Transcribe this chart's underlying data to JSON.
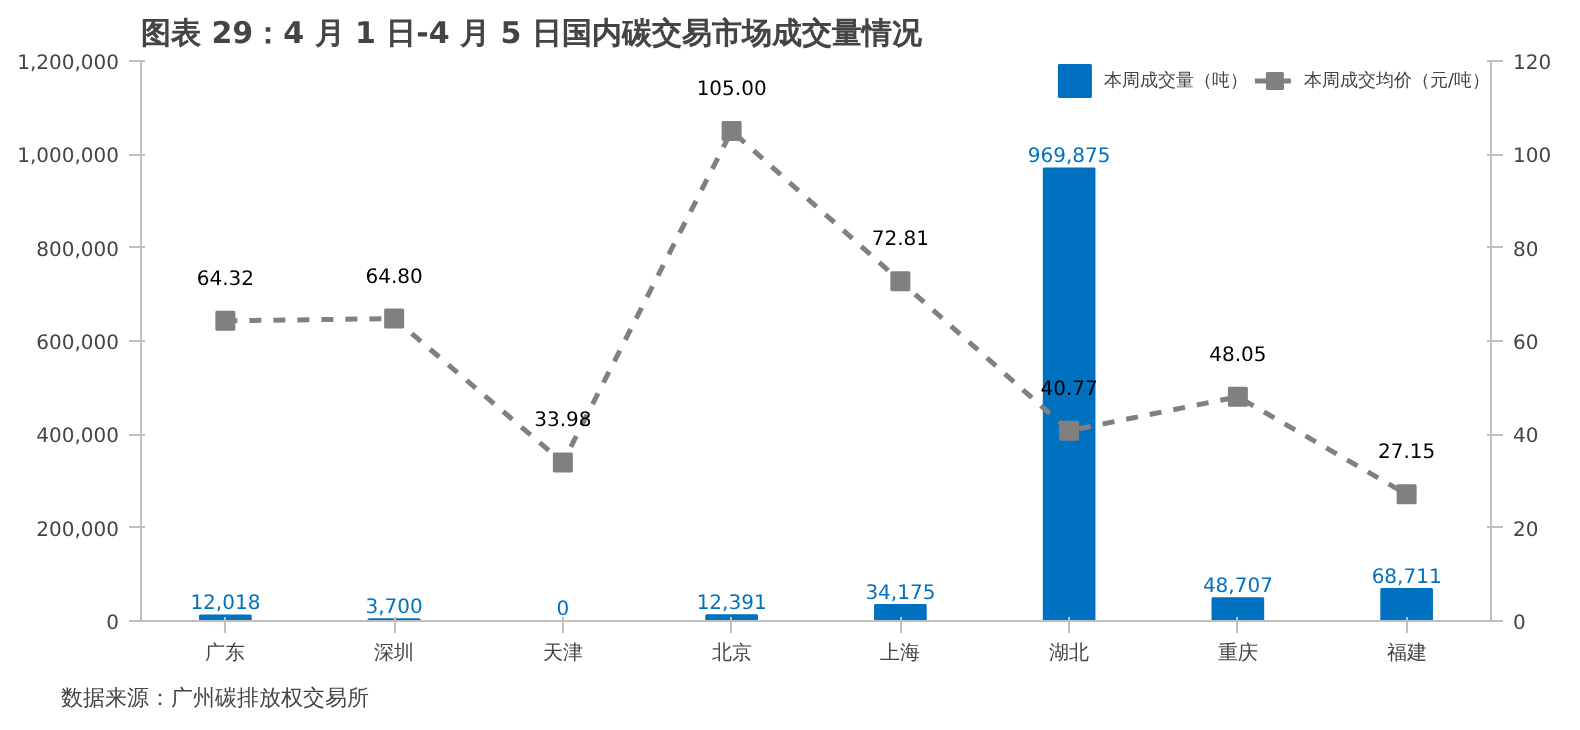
{
  "chart_data": {
    "type": "bar",
    "title": "图表 29：4 月 1 日-4 月 5 日国内碳交易市场成交量情况",
    "categories": [
      "广东",
      "深圳",
      "天津",
      "北京",
      "上海",
      "湖北",
      "重庆",
      "福建"
    ],
    "series": [
      {
        "name": "本周成交量（吨）",
        "color": "#0070c0",
        "values": [
          12018,
          3700,
          0,
          12391,
          34175,
          969875,
          48707,
          68711
        ],
        "value_labels": [
          "12,018",
          "3,700",
          "0",
          "12,391",
          "34,175",
          "969,875",
          "48,707",
          "68,711"
        ]
      },
      {
        "name": "本周成交均价（元/吨）",
        "type": "line",
        "axis": "y2",
        "color": "#808080",
        "line_style": "dashed",
        "marker": "square",
        "values": [
          64.32,
          64.8,
          33.98,
          105.0,
          72.81,
          40.77,
          48.05,
          27.15
        ],
        "value_labels": [
          "64.32",
          "64.80",
          "33.98",
          "105.00",
          "72.81",
          "40.77",
          "48.05",
          "27.15"
        ]
      }
    ],
    "ylim": [
      0,
      1200000
    ],
    "yticks": [
      {
        "value": 0,
        "label": "0"
      },
      {
        "value": 200000,
        "label": "200,000"
      },
      {
        "value": 400000,
        "label": "400,000"
      },
      {
        "value": 600000,
        "label": "600,000"
      },
      {
        "value": 800000,
        "label": "800,000"
      },
      {
        "value": 1000000,
        "label": "1,000,000"
      },
      {
        "value": 1200000,
        "label": "1,200,000"
      }
    ],
    "y2lim": [
      0,
      120
    ],
    "y2ticks": [
      0,
      20,
      40,
      60,
      80,
      100,
      120
    ],
    "grid": false,
    "legend": "top",
    "annotations": [
      "数据来源：广州碳排放权交易所"
    ]
  }
}
